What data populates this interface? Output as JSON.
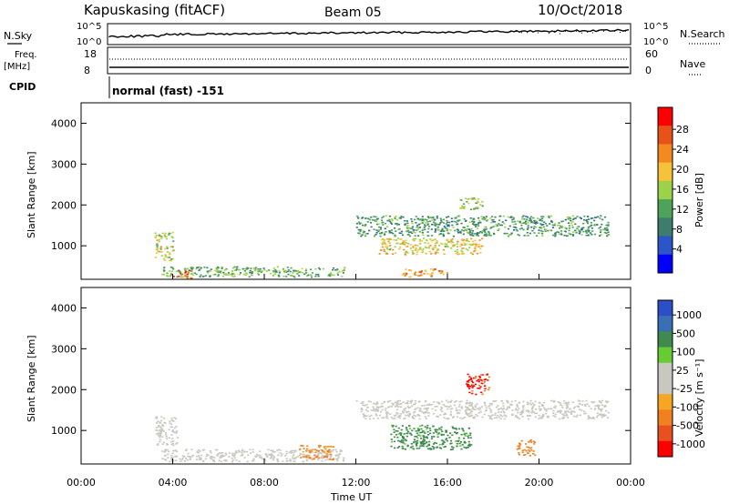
{
  "header": {
    "station": "Kapuskasing (fitACF)",
    "beam": "Beam 05",
    "date": "10/Oct/2018"
  },
  "top_panels": {
    "nsky_label": "N.Sky",
    "nsky_ticks": [
      "10^5",
      "10^0"
    ],
    "nsearch_label": "N.Search",
    "nsearch_ticks": [
      "10^5",
      "10^0"
    ],
    "freq_label_1": "Freq.",
    "freq_label_2": "[MHz]",
    "freq_ticks": [
      "18",
      "8"
    ],
    "nave_label": "Nave",
    "nave_ticks": [
      "60",
      "0"
    ],
    "cpid_label": "CPID",
    "cpid_text": "normal (fast) -151"
  },
  "colors": {
    "power_scale": [
      "#0000ff",
      "#2b55c8",
      "#3c7d6e",
      "#4ea35b",
      "#9bd24a",
      "#f5c23a",
      "#f28a1f",
      "#e8521a",
      "#ff0000"
    ],
    "velocity_scale": [
      "#2b4fc8",
      "#3a6fb5",
      "#3f8a4e",
      "#66cc33",
      "#c8c8c0",
      "#c8c8c0",
      "#f5a623",
      "#f08020",
      "#e85020",
      "#ff0000"
    ]
  },
  "chart_data": [
    {
      "type": "heatmap",
      "name": "power",
      "ylabel": "Slant Range [km]",
      "yticks": [
        "4000",
        "3000",
        "2000",
        "1000"
      ],
      "colorbar_label": "Power [dB]",
      "colorbar_ticks": [
        "28",
        "24",
        "20",
        "16",
        "12",
        "8",
        "4"
      ],
      "colorbar_range": [
        0,
        30
      ],
      "ylim": [
        180,
        4500
      ],
      "echo_regions": [
        {
          "t0": 3.2,
          "t1": 4.0,
          "r0": 650,
          "r1": 1350,
          "level": 16
        },
        {
          "t0": 3.5,
          "t1": 11.5,
          "r0": 250,
          "r1": 500,
          "level": 12
        },
        {
          "t0": 4.0,
          "t1": 4.8,
          "r0": 220,
          "r1": 400,
          "level": 26
        },
        {
          "t0": 12.0,
          "t1": 23.0,
          "r0": 1250,
          "r1": 1750,
          "level": 10
        },
        {
          "t0": 13.0,
          "t1": 17.5,
          "r0": 800,
          "r1": 1200,
          "level": 18
        },
        {
          "t0": 14.0,
          "t1": 16.0,
          "r0": 250,
          "r1": 450,
          "level": 22
        },
        {
          "t0": 16.5,
          "t1": 17.5,
          "r0": 1900,
          "r1": 2200,
          "level": 14
        }
      ]
    },
    {
      "type": "heatmap",
      "name": "velocity",
      "ylabel": "Slant Range [km]",
      "yticks": [
        "4000",
        "3000",
        "2000",
        "1000"
      ],
      "colorbar_label": "Velocity [m s⁻¹]",
      "colorbar_ticks": [
        "1000",
        "500",
        "100",
        "25",
        "-25",
        "-100",
        "-500",
        "-1000"
      ],
      "xlabel": "Time UT",
      "xticks": [
        "00:00",
        "04:00",
        "08:00",
        "12:00",
        "16:00",
        "20:00",
        "00:00"
      ],
      "xlim": [
        0,
        24
      ],
      "ylim": [
        180,
        4500
      ],
      "echo_regions": [
        {
          "t0": 3.2,
          "t1": 4.2,
          "r0": 650,
          "r1": 1350,
          "v": 0
        },
        {
          "t0": 3.5,
          "t1": 11.5,
          "r0": 250,
          "r1": 550,
          "v": 0
        },
        {
          "t0": 9.5,
          "t1": 11.0,
          "r0": 300,
          "r1": 650,
          "v": -150
        },
        {
          "t0": 12.0,
          "t1": 23.0,
          "r0": 1300,
          "r1": 1750,
          "v": 0
        },
        {
          "t0": 13.5,
          "t1": 17.0,
          "r0": 550,
          "r1": 1150,
          "v": 150
        },
        {
          "t0": 16.8,
          "t1": 17.8,
          "r0": 1900,
          "r1": 2400,
          "v": -600
        },
        {
          "t0": 19.0,
          "t1": 19.8,
          "r0": 400,
          "r1": 800,
          "v": -150
        }
      ]
    }
  ],
  "footer": {
    "xlabel": "Time UT"
  }
}
